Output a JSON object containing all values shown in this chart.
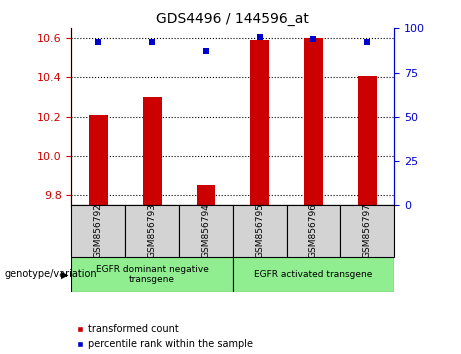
{
  "title": "GDS4496 / 144596_at",
  "samples": [
    "GSM856792",
    "GSM856793",
    "GSM856794",
    "GSM856795",
    "GSM856796",
    "GSM856797"
  ],
  "red_values": [
    10.21,
    10.3,
    9.855,
    10.59,
    10.6,
    10.41
  ],
  "blue_values_pct": [
    92,
    92,
    87,
    95,
    94,
    92
  ],
  "ylim_left": [
    9.75,
    10.65
  ],
  "ylim_right": [
    0,
    100
  ],
  "yticks_left": [
    9.8,
    10.0,
    10.2,
    10.4,
    10.6
  ],
  "yticks_right": [
    0,
    25,
    50,
    75,
    100
  ],
  "bar_color": "#cc0000",
  "dot_color": "#0000cc",
  "bar_bottom": 9.75,
  "group1_label": "EGFR dominant negative\ntransgene",
  "group2_label": "EGFR activated transgene",
  "group_color": "#90ee90",
  "sample_box_color": "#d3d3d3",
  "genotype_label": "genotype/variation",
  "legend_red": "transformed count",
  "legend_blue": "percentile rank within the sample",
  "bg_color": "#ffffff",
  "plot_bg": "#ffffff",
  "tick_label_color_left": "#cc0000",
  "tick_label_color_right": "#0000cc",
  "bar_width": 0.35
}
